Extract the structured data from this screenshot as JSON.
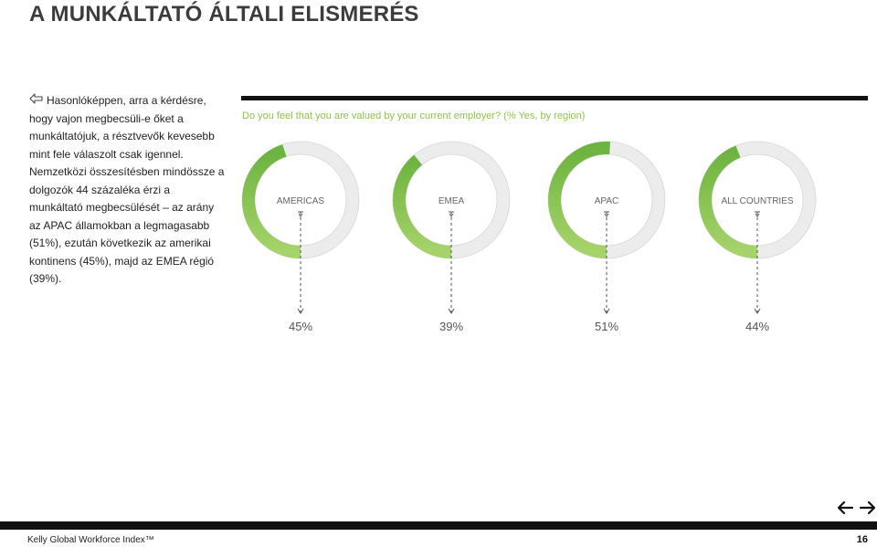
{
  "page": {
    "title": "A MUNKÁLTATÓ ÁLTALI ELISMERÉS",
    "body": "Hasonlóképpen, arra a kérdésre, hogy vajon megbecsüli-e őket a munkáltatójuk, a résztvevők kevesebb mint fele válaszolt csak igennel. Nemzetközi összesítésben mindössze a dolgozók 44 százaléka érzi a munkáltató megbecsülését – az arány az APAC államokban a legmagasabb (51%), ezután következik az amerikai kontinens (45%), majd az EMEA régió (39%).",
    "footer": "Kelly Global Workforce Index™",
    "page_number": "16",
    "icons": {
      "bullet": "hand-pointer-icon",
      "prev": "arrow-left-icon",
      "next": "arrow-right-icon"
    }
  },
  "chart_data": {
    "type": "donut",
    "title": "Do you feel that you are valued by your current employer? (% Yes, by region)",
    "categories": [
      "AMERICAS",
      "EMEA",
      "APAC",
      "ALL COUNTRIES"
    ],
    "values": [
      45,
      39,
      51,
      44
    ],
    "value_labels": [
      "45%",
      "39%",
      "51%",
      "44%"
    ],
    "colors": {
      "fill": "#6cb33f",
      "fill_light": "#a6d46a",
      "track": "#ececec",
      "track_border": "#d6d6d6",
      "title": "#8cc63f"
    }
  }
}
